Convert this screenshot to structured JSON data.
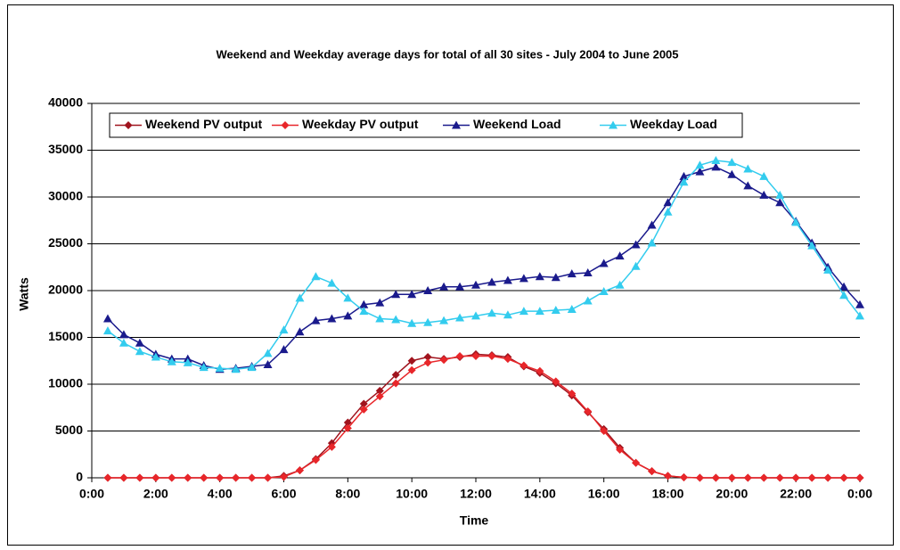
{
  "chart_data": {
    "type": "line",
    "title": "Weekend and Weekday average days for total of all 30 sites - July 2004 to June 2005",
    "x_label": "Time",
    "y_label": "Watts",
    "x": [
      0.5,
      1,
      1.5,
      2,
      2.5,
      3,
      3.5,
      4,
      4.5,
      5,
      5.5,
      6,
      6.5,
      7,
      7.5,
      8,
      8.5,
      9,
      9.5,
      10,
      10.5,
      11,
      11.5,
      12,
      12.5,
      13,
      13.5,
      14,
      14.5,
      15,
      15.5,
      16,
      16.5,
      17,
      17.5,
      18,
      18.5,
      19,
      19.5,
      20,
      20.5,
      21,
      21.5,
      22,
      22.5,
      23,
      23.5,
      24
    ],
    "xlim": [
      0,
      24
    ],
    "xticks": [
      {
        "value": 0,
        "label": "0:00"
      },
      {
        "value": 2,
        "label": "2:00"
      },
      {
        "value": 4,
        "label": "4:00"
      },
      {
        "value": 6,
        "label": "6:00"
      },
      {
        "value": 8,
        "label": "8:00"
      },
      {
        "value": 10,
        "label": "10:00"
      },
      {
        "value": 12,
        "label": "12:00"
      },
      {
        "value": 14,
        "label": "14:00"
      },
      {
        "value": 16,
        "label": "16:00"
      },
      {
        "value": 18,
        "label": "18:00"
      },
      {
        "value": 20,
        "label": "20:00"
      },
      {
        "value": 22,
        "label": "22:00"
      },
      {
        "value": 24,
        "label": "0:00"
      }
    ],
    "ylim": [
      0,
      40000
    ],
    "yticks": [
      0,
      5000,
      10000,
      15000,
      20000,
      25000,
      30000,
      35000,
      40000
    ],
    "grid": true,
    "legend": "upper left",
    "series": [
      {
        "name": "Weekend PV output",
        "color": "#a0141e",
        "marker": "diamond",
        "values": [
          0,
          0,
          0,
          0,
          0,
          0,
          0,
          0,
          0,
          0,
          0,
          200,
          800,
          2000,
          3700,
          5900,
          7900,
          9300,
          11000,
          12500,
          12900,
          12700,
          12900,
          13200,
          13100,
          12900,
          11900,
          11200,
          10100,
          8800,
          7000,
          5200,
          3200,
          1600,
          700,
          200,
          50,
          0,
          0,
          0,
          0,
          0,
          0,
          0,
          0,
          0,
          0,
          0
        ]
      },
      {
        "name": "Weekday PV output",
        "color": "#e8262a",
        "marker": "diamond",
        "values": [
          0,
          0,
          0,
          0,
          0,
          0,
          0,
          0,
          0,
          0,
          0,
          100,
          800,
          1900,
          3300,
          5300,
          7300,
          8700,
          10100,
          11500,
          12300,
          12600,
          13000,
          13000,
          13000,
          12700,
          12000,
          11400,
          10300,
          9000,
          7100,
          5000,
          3000,
          1600,
          700,
          200,
          50,
          0,
          0,
          0,
          0,
          0,
          0,
          0,
          0,
          0,
          0,
          0
        ]
      },
      {
        "name": "Weekend Load",
        "color": "#1a1a8c",
        "marker": "triangle",
        "values": [
          17000,
          15300,
          14400,
          13200,
          12700,
          12700,
          12000,
          11600,
          11700,
          11900,
          12100,
          13700,
          15600,
          16800,
          17000,
          17300,
          18500,
          18700,
          19600,
          19600,
          20000,
          20400,
          20400,
          20600,
          20900,
          21100,
          21300,
          21500,
          21400,
          21800,
          21900,
          22900,
          23700,
          24900,
          27000,
          29400,
          32200,
          32700,
          33200,
          32400,
          31200,
          30200,
          29400,
          27400,
          25100,
          22500,
          20400,
          18500
        ]
      },
      {
        "name": "Weekday Load",
        "color": "#33ccee",
        "marker": "triangle",
        "values": [
          15700,
          14400,
          13500,
          12900,
          12400,
          12300,
          11800,
          11700,
          11600,
          11800,
          13300,
          15800,
          19200,
          21500,
          20800,
          19200,
          17800,
          17000,
          16900,
          16500,
          16600,
          16800,
          17100,
          17300,
          17600,
          17400,
          17800,
          17800,
          17900,
          18000,
          18900,
          19900,
          20600,
          22600,
          25100,
          28400,
          31600,
          33400,
          33900,
          33700,
          33000,
          32200,
          30200,
          27300,
          24800,
          22200,
          19500,
          17300
        ]
      }
    ]
  }
}
